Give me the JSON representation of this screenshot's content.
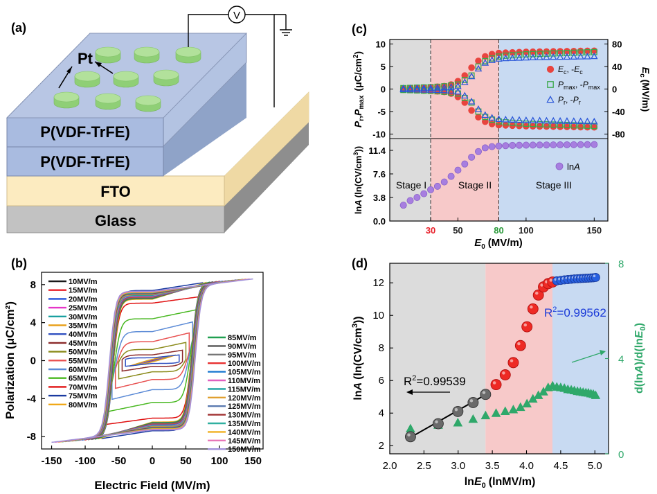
{
  "panels": {
    "a": {
      "label": "(a)",
      "electrode_label": "Pt",
      "meter_symbol": "V",
      "layers": [
        "P(VDF-TrFE)",
        "P(VDF-TrFE)",
        "FTO",
        "Glass"
      ],
      "colors": {
        "film": "#b3c3e2",
        "fto": "#fcebc0",
        "glass": "#c2c2c2",
        "electrode": "#b2e19b"
      }
    },
    "b": {
      "label": "(b)"
    },
    "c": {
      "label": "(c)"
    },
    "d": {
      "label": "(d)"
    }
  },
  "chart_data": [
    {
      "panel": "b",
      "type": "line",
      "xlabel": "Electric Field (MV/m)",
      "ylabel": "Polarization (μC/cm²)",
      "xlim": [
        -165,
        165
      ],
      "ylim": [
        -9.3,
        9.3
      ],
      "xticks": [
        -150,
        -100,
        -50,
        0,
        50,
        100,
        150
      ],
      "xtick_labels": [
        "-150",
        "-100",
        "-50",
        "0",
        "50",
        "100",
        "150"
      ],
      "yticks": [
        -8,
        -4,
        0,
        4,
        8
      ],
      "ytick_labels": [
        "-8",
        "-4",
        "0",
        "4",
        "8"
      ],
      "legend_col1_position": "top-left",
      "legend_col2_position": "right-center",
      "series": [
        {
          "name": "10MV/m",
          "emax": 10,
          "color": "#1a1a1a"
        },
        {
          "name": "15MV/m",
          "emax": 15,
          "color": "#e8202a"
        },
        {
          "name": "20MV/m",
          "emax": 20,
          "color": "#1f4fd8"
        },
        {
          "name": "25MV/m",
          "emax": 25,
          "color": "#e535c8"
        },
        {
          "name": "30MV/m",
          "emax": 30,
          "color": "#1aa0a0"
        },
        {
          "name": "35MV/m",
          "emax": 35,
          "color": "#e8a01a"
        },
        {
          "name": "40MV/m",
          "emax": 40,
          "color": "#3050c0"
        },
        {
          "name": "45MV/m",
          "emax": 45,
          "color": "#8b2a2a"
        },
        {
          "name": "50MV/m",
          "emax": 50,
          "color": "#8a8a1a"
        },
        {
          "name": "55MV/m",
          "emax": 55,
          "color": "#e85050"
        },
        {
          "name": "60MV/m",
          "emax": 60,
          "color": "#5b8ad6"
        },
        {
          "name": "65MV/m",
          "emax": 65,
          "color": "#48b820"
        },
        {
          "name": "70MV/m",
          "emax": 70,
          "color": "#e01010"
        },
        {
          "name": "75MV/m",
          "emax": 75,
          "color": "#1a3aa0"
        },
        {
          "name": "80MV/m",
          "emax": 80,
          "color": "#f0a818"
        },
        {
          "name": "85MV/m",
          "emax": 85,
          "color": "#20a050"
        },
        {
          "name": "90MV/m",
          "emax": 90,
          "color": "#555555"
        },
        {
          "name": "95MV/m",
          "emax": 95,
          "color": "#777777"
        },
        {
          "name": "100MV/m",
          "emax": 100,
          "color": "#e83030"
        },
        {
          "name": "105MV/m",
          "emax": 105,
          "color": "#1a78d0"
        },
        {
          "name": "110MV/m",
          "emax": 110,
          "color": "#e060c0"
        },
        {
          "name": "115MV/m",
          "emax": 115,
          "color": "#18a0a0"
        },
        {
          "name": "120MV/m",
          "emax": 120,
          "color": "#e0a030"
        },
        {
          "name": "125MV/m",
          "emax": 125,
          "color": "#5a7ab0"
        },
        {
          "name": "130MV/m",
          "emax": 130,
          "color": "#a03030"
        },
        {
          "name": "135MV/m",
          "emax": 135,
          "color": "#30b0a0"
        },
        {
          "name": "140MV/m",
          "emax": 140,
          "color": "#f0b020"
        },
        {
          "name": "145MV/m",
          "emax": 145,
          "color": "#e878b8"
        },
        {
          "name": "150MV/m",
          "emax": 150,
          "color": "#a090d8"
        }
      ]
    },
    {
      "panel": "c-top",
      "type": "scatter",
      "xlim": [
        0,
        160
      ],
      "ylim": [
        -11,
        11
      ],
      "y2lim": [
        -88,
        88
      ],
      "ylabel": "Pr,Pmax (μC/cm²)",
      "y2label": "Ec (MV/m)",
      "yticks": [
        -10,
        -5,
        0,
        5,
        10
      ],
      "ytick_labels": [
        "-10",
        "-5",
        "0",
        "5",
        "10"
      ],
      "y2ticks": [
        -80,
        -40,
        0,
        40,
        80
      ],
      "y2tick_labels": [
        "-80",
        "-40",
        "0",
        "40",
        "80"
      ],
      "legend_position": "right",
      "legend": [
        {
          "main": "E",
          "sub": "c",
          "sep": ", -",
          "main2": "E",
          "sub2": "c"
        },
        {
          "main": "P",
          "sub": "max",
          "sep": ", -",
          "main2": "P",
          "sub2": "max"
        },
        {
          "main": "P",
          "sub": "r",
          "sep": ", -",
          "main2": "P",
          "sub2": "r"
        }
      ],
      "x": [
        10,
        15,
        20,
        25,
        30,
        35,
        40,
        45,
        50,
        55,
        60,
        65,
        70,
        75,
        80,
        85,
        90,
        95,
        100,
        105,
        110,
        115,
        120,
        125,
        130,
        135,
        140,
        145,
        150
      ],
      "series": [
        {
          "name": "Ec",
          "marker": "circle",
          "color": "#e8443e",
          "axis": "right",
          "values": [
            1,
            1.5,
            2,
            2.5,
            3,
            4,
            5,
            8,
            14,
            24,
            38,
            50,
            58,
            62,
            64,
            64.5,
            65,
            65.5,
            66,
            66.2,
            66.4,
            66.6,
            66.8,
            67,
            67.2,
            67.4,
            67.6,
            67.8,
            68
          ]
        },
        {
          "name": "Pmax",
          "marker": "square",
          "color": "#3aa84a",
          "axis": "left",
          "values": [
            0.2,
            0.25,
            0.3,
            0.35,
            0.4,
            0.5,
            0.6,
            0.8,
            1,
            2,
            3,
            5,
            6.2,
            6.8,
            7.2,
            7.4,
            7.5,
            7.6,
            7.7,
            7.75,
            7.8,
            7.85,
            7.9,
            7.95,
            8,
            8.05,
            8.1,
            8.15,
            8.2
          ]
        },
        {
          "name": "Pr",
          "marker": "triangle",
          "color": "#2b57d8",
          "axis": "left",
          "values": [
            0.1,
            0.12,
            0.15,
            0.18,
            0.2,
            0.25,
            0.3,
            0.4,
            0.6,
            1.5,
            2.8,
            4.5,
            5.8,
            6.4,
            6.7,
            6.8,
            6.85,
            6.9,
            6.95,
            7,
            7.02,
            7.05,
            7.08,
            7.1,
            7.12,
            7.15,
            7.18,
            7.2,
            7.25
          ]
        }
      ]
    },
    {
      "panel": "c-bottom",
      "type": "scatter",
      "xlabel": "E0 (MV/m)",
      "ylabel": "lnA (ln(CV/cm³))",
      "xlim": [
        0,
        160
      ],
      "ylim": [
        0,
        13.3
      ],
      "xticks": [
        30,
        50,
        80,
        100,
        150
      ],
      "xtick_labels": [
        "30",
        "50",
        "80",
        "100",
        "150"
      ],
      "xtick_colors": [
        "#e8202a",
        "#222222",
        "#2a9a3a",
        "#222222",
        "#222222"
      ],
      "yticks": [
        0,
        3.8,
        7.6,
        11.4
      ],
      "ytick_labels": [
        "0.0",
        "3.8",
        "7.6",
        "11.4"
      ],
      "stage_bounds": [
        30,
        80
      ],
      "stages": [
        "Stage I",
        "Stage II",
        "Stage III"
      ],
      "legend": "lnA",
      "x": [
        10,
        15,
        20,
        25,
        30,
        35,
        40,
        45,
        50,
        55,
        60,
        65,
        70,
        75,
        80,
        85,
        90,
        95,
        100,
        105,
        110,
        115,
        120,
        125,
        130,
        135,
        140,
        145,
        150
      ],
      "series": [
        {
          "name": "lnA",
          "marker": "circle",
          "color": "#a77ee0",
          "values": [
            2.55,
            3.3,
            3.8,
            4.4,
            5.05,
            5.6,
            6.3,
            7.2,
            8.2,
            9.2,
            10.3,
            11.2,
            11.8,
            12,
            12.1,
            12.15,
            12.2,
            12.22,
            12.24,
            12.25,
            12.26,
            12.27,
            12.28,
            12.29,
            12.3,
            12.31,
            12.32,
            12.33,
            12.34
          ]
        }
      ]
    },
    {
      "panel": "d",
      "type": "scatter",
      "xlabel": "lnE0 (lnMV/m)",
      "ylabel": "lnA (ln(CV/cm³))",
      "y2label": "d(lnA)/d(lnE0)",
      "xlim": [
        2.0,
        5.2
      ],
      "ylim": [
        1.5,
        13.2
      ],
      "y2lim": [
        0,
        8
      ],
      "xticks": [
        2.0,
        2.5,
        3.0,
        3.5,
        4.0,
        4.5,
        5.0
      ],
      "xtick_labels": [
        "2.0",
        "2.5",
        "3.0",
        "3.5",
        "4.0",
        "4.5",
        "5.0"
      ],
      "yticks": [
        2,
        4,
        6,
        8,
        10,
        12
      ],
      "ytick_labels": [
        "2",
        "4",
        "6",
        "8",
        "10",
        "12"
      ],
      "y2ticks": [
        0,
        4,
        8
      ],
      "y2tick_labels": [
        "0",
        "4",
        "8"
      ],
      "stage_bounds": [
        3.4,
        4.38
      ],
      "fit_labels": [
        {
          "prefix": "R",
          "power": "2",
          "value": "=0.99539"
        },
        {
          "prefix": "R",
          "power": "2",
          "value": "=0.99562"
        }
      ],
      "series": [
        {
          "name": "lnA stage I",
          "marker": "circle",
          "color": "#6a6a6a",
          "x": [
            2.303,
            2.708,
            2.996,
            3.219,
            3.401
          ],
          "values": [
            2.55,
            3.35,
            4.1,
            4.65,
            5.15
          ]
        },
        {
          "name": "lnA stage II",
          "marker": "circle",
          "color": "#ee2a24",
          "x": [
            3.555,
            3.689,
            3.807,
            3.912,
            4.007,
            4.094,
            4.174,
            4.248,
            4.317,
            4.382
          ],
          "values": [
            5.75,
            6.35,
            7.1,
            8.15,
            9.3,
            10.4,
            11.25,
            11.75,
            11.95,
            12.05
          ]
        },
        {
          "name": "lnA stage III",
          "marker": "circle",
          "color": "#2860e0",
          "x": [
            4.443,
            4.5,
            4.554,
            4.605,
            4.654,
            4.7,
            4.745,
            4.787,
            4.828,
            4.868,
            4.905,
            4.942,
            4.977,
            5.011
          ],
          "values": [
            12.12,
            12.15,
            12.18,
            12.2,
            12.22,
            12.24,
            12.25,
            12.26,
            12.27,
            12.28,
            12.29,
            12.3,
            12.31,
            12.33
          ]
        },
        {
          "name": "d(lnA)/d(lnE0)",
          "marker": "triangle",
          "color": "#2fa86a",
          "axis": "right",
          "x": [
            2.303,
            2.708,
            2.996,
            3.219,
            3.401,
            3.555,
            3.689,
            3.807,
            3.912,
            4.007,
            4.094,
            4.174,
            4.248,
            4.317,
            4.382,
            4.443,
            4.5,
            4.554,
            4.605,
            4.654,
            4.7,
            4.745,
            4.787,
            4.828,
            4.868,
            4.905,
            4.942,
            4.977,
            5.011
          ],
          "values": [
            1.05,
            1.2,
            1.3,
            1.45,
            1.6,
            1.7,
            1.78,
            1.85,
            1.95,
            2.1,
            2.3,
            2.45,
            2.6,
            2.78,
            2.85,
            2.8,
            2.78,
            2.75,
            2.7,
            2.68,
            2.65,
            2.62,
            2.6,
            2.58,
            2.56,
            2.55,
            2.52,
            2.5,
            2.45
          ]
        }
      ]
    }
  ]
}
